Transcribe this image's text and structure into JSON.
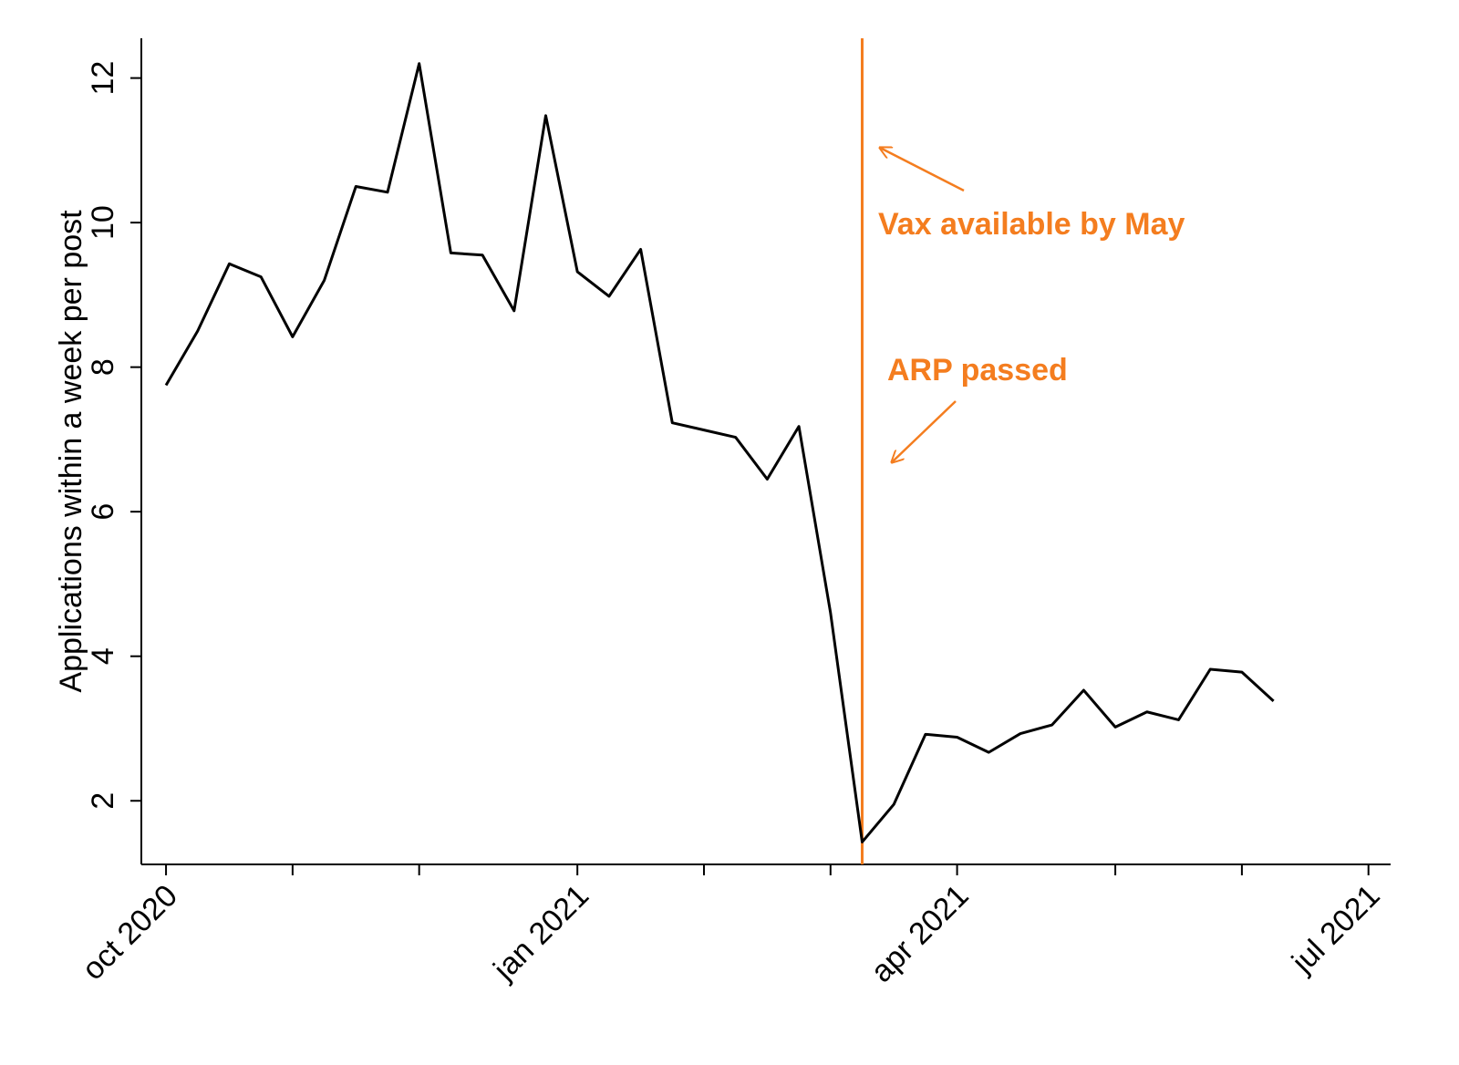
{
  "chart_data": {
    "type": "line",
    "y_label": "Applications within a week per post",
    "x": [
      0,
      1,
      2,
      3,
      4,
      5,
      6,
      7,
      8,
      9,
      10,
      11,
      12,
      13,
      14,
      15,
      16,
      17,
      18,
      19,
      20,
      21,
      22,
      23,
      24,
      25,
      26,
      27,
      28,
      29,
      30,
      31,
      32,
      33,
      34,
      35
    ],
    "series": [
      {
        "name": "Applications",
        "color": "#000000",
        "values": [
          7.75,
          8.5,
          9.43,
          9.25,
          8.42,
          9.2,
          10.5,
          10.42,
          12.2,
          9.58,
          9.55,
          8.78,
          11.48,
          9.32,
          8.98,
          9.63,
          7.23,
          7.13,
          7.03,
          6.45,
          7.18,
          4.6,
          1.43,
          1.95,
          2.92,
          2.88,
          2.67,
          2.93,
          3.05,
          3.53,
          3.02,
          3.23,
          3.12,
          3.82,
          3.78,
          3.38
        ]
      }
    ],
    "xlim": [
      -0.78,
      38.7
    ],
    "ylim": [
      1.12,
      12.55
    ],
    "xticks": [
      {
        "value": 0,
        "label": "oct 2020"
      },
      4,
      8,
      {
        "value": 13,
        "label": "jan 2021"
      },
      17,
      21,
      {
        "value": 25,
        "label": "apr 2021"
      },
      30,
      34,
      {
        "value": 38,
        "label": "jul 2021"
      }
    ],
    "yticks": [
      2,
      4,
      6,
      8,
      10,
      12
    ],
    "vline": {
      "x": 22,
      "color": "#f47d1f"
    },
    "annotations": [
      "Vax available by May",
      "ARP passed"
    ]
  }
}
